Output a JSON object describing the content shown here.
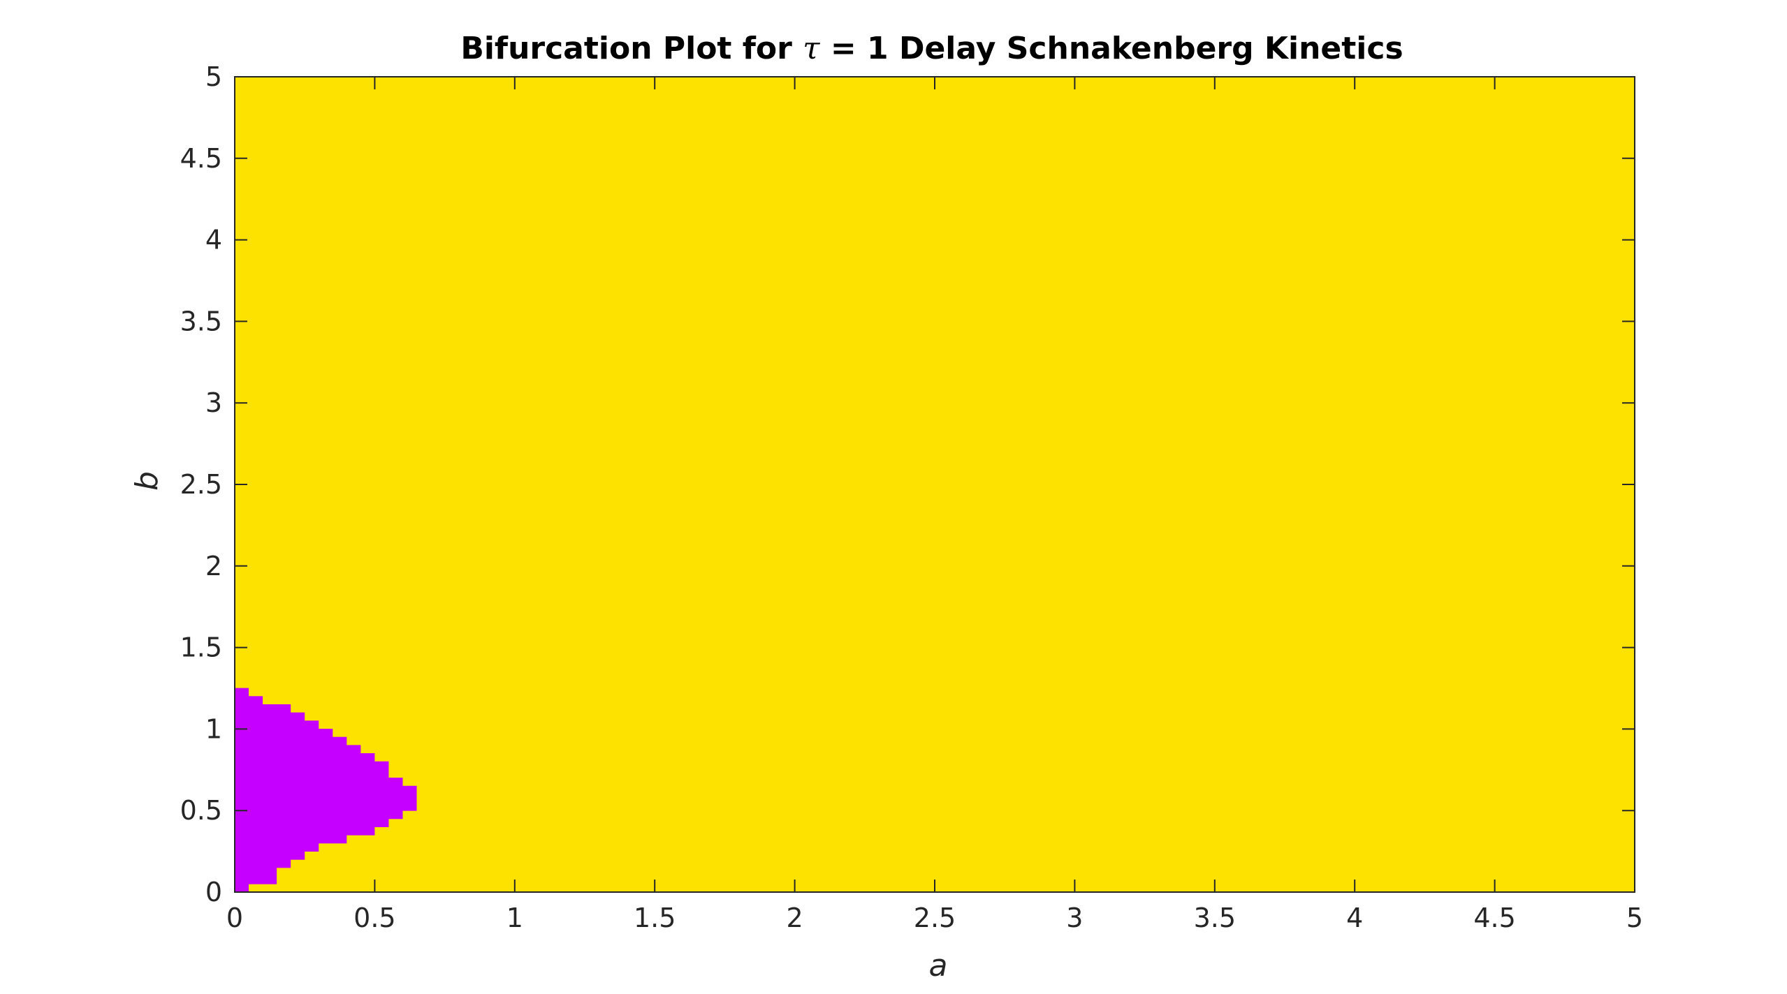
{
  "chart_data": {
    "type": "heatmap",
    "title": {
      "prefix": "Bifurcation Plot for ",
      "symbol": "τ",
      "suffix": " = 1 Delay Schnakenberg Kinetics"
    },
    "xlabel": "a",
    "ylabel": "b",
    "xlim": [
      0,
      5
    ],
    "ylim": [
      0,
      5
    ],
    "xticks": [
      0,
      0.5,
      1,
      1.5,
      2,
      2.5,
      3,
      3.5,
      4,
      4.5,
      5
    ],
    "yticks": [
      0,
      0.5,
      1,
      1.5,
      2,
      2.5,
      3,
      3.5,
      4,
      4.5,
      5
    ],
    "xtick_labels": [
      "0",
      "0.5",
      "1",
      "1.5",
      "2",
      "2.5",
      "3",
      "3.5",
      "4",
      "4.5",
      "5"
    ],
    "ytick_labels": [
      "0",
      "0.5",
      "1",
      "1.5",
      "2",
      "2.5",
      "3",
      "3.5",
      "4",
      "4.5",
      "5"
    ],
    "background_color": "#FDE200",
    "region_color": "#C600FF",
    "grid_step": 0.05,
    "region_rows": [
      {
        "b0": 0.0,
        "b1": 0.05,
        "a0": 0.0,
        "a1": 0.05
      },
      {
        "b0": 0.05,
        "b1": 0.1,
        "a0": 0.0,
        "a1": 0.15
      },
      {
        "b0": 0.1,
        "b1": 0.15,
        "a0": 0.0,
        "a1": 0.15
      },
      {
        "b0": 0.15,
        "b1": 0.2,
        "a0": 0.0,
        "a1": 0.2
      },
      {
        "b0": 0.2,
        "b1": 0.25,
        "a0": 0.0,
        "a1": 0.25
      },
      {
        "b0": 0.25,
        "b1": 0.3,
        "a0": 0.0,
        "a1": 0.3
      },
      {
        "b0": 0.3,
        "b1": 0.35,
        "a0": 0.0,
        "a1": 0.4
      },
      {
        "b0": 0.35,
        "b1": 0.4,
        "a0": 0.0,
        "a1": 0.5
      },
      {
        "b0": 0.4,
        "b1": 0.45,
        "a0": 0.0,
        "a1": 0.55
      },
      {
        "b0": 0.45,
        "b1": 0.5,
        "a0": 0.0,
        "a1": 0.6
      },
      {
        "b0": 0.5,
        "b1": 0.55,
        "a0": 0.0,
        "a1": 0.65
      },
      {
        "b0": 0.55,
        "b1": 0.6,
        "a0": 0.0,
        "a1": 0.65
      },
      {
        "b0": 0.6,
        "b1": 0.65,
        "a0": 0.0,
        "a1": 0.65
      },
      {
        "b0": 0.65,
        "b1": 0.7,
        "a0": 0.0,
        "a1": 0.6
      },
      {
        "b0": 0.7,
        "b1": 0.75,
        "a0": 0.0,
        "a1": 0.55
      },
      {
        "b0": 0.75,
        "b1": 0.8,
        "a0": 0.0,
        "a1": 0.55
      },
      {
        "b0": 0.8,
        "b1": 0.85,
        "a0": 0.0,
        "a1": 0.5
      },
      {
        "b0": 0.85,
        "b1": 0.9,
        "a0": 0.0,
        "a1": 0.45
      },
      {
        "b0": 0.9,
        "b1": 0.95,
        "a0": 0.0,
        "a1": 0.4
      },
      {
        "b0": 0.95,
        "b1": 1.0,
        "a0": 0.0,
        "a1": 0.35
      },
      {
        "b0": 1.0,
        "b1": 1.05,
        "a0": 0.0,
        "a1": 0.3
      },
      {
        "b0": 1.05,
        "b1": 1.1,
        "a0": 0.0,
        "a1": 0.25
      },
      {
        "b0": 1.1,
        "b1": 1.15,
        "a0": 0.0,
        "a1": 0.2
      },
      {
        "b0": 1.15,
        "b1": 1.2,
        "a0": 0.0,
        "a1": 0.1
      },
      {
        "b0": 1.2,
        "b1": 1.25,
        "a0": 0.0,
        "a1": 0.05
      }
    ]
  }
}
